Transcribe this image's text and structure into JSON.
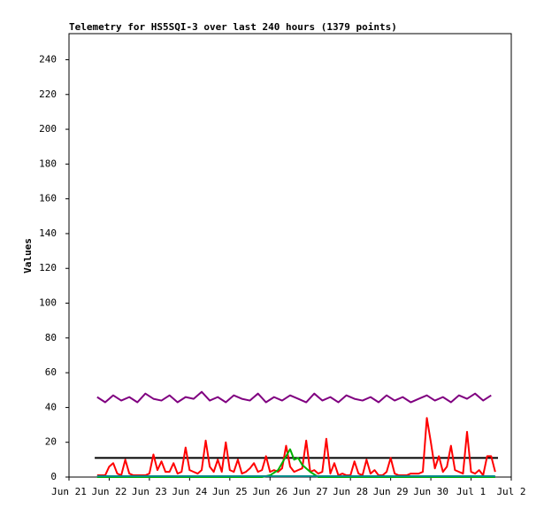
{
  "chart_data": {
    "type": "line",
    "title": "Telemetry for HS5SQI-3 over last 240 hours (1379 points)",
    "y_label": "Values",
    "ylim": [
      0,
      255
    ],
    "yticks": [
      0,
      20,
      40,
      60,
      80,
      100,
      120,
      140,
      160,
      180,
      200,
      220,
      240
    ],
    "xlim": [
      0,
      11
    ],
    "xticks": [
      {
        "value": 0,
        "label": "Jun 21"
      },
      {
        "value": 1,
        "label": "Jun 22"
      },
      {
        "value": 2,
        "label": "Jun 23"
      },
      {
        "value": 3,
        "label": "Jun 24"
      },
      {
        "value": 4,
        "label": "Jun 25"
      },
      {
        "value": 5,
        "label": "Jun 26"
      },
      {
        "value": 6,
        "label": "Jun 27"
      },
      {
        "value": 7,
        "label": "Jun 28"
      },
      {
        "value": 8,
        "label": "Jun 29"
      },
      {
        "value": 9,
        "label": "Jun 30"
      },
      {
        "value": 10,
        "label": "Jul 1"
      },
      {
        "value": 11,
        "label": "Jul 2"
      }
    ],
    "series": [
      {
        "color": "#800080",
        "x": [
          0.7,
          0.9,
          1.1,
          1.3,
          1.5,
          1.7,
          1.9,
          2.1,
          2.3,
          2.5,
          2.7,
          2.9,
          3.1,
          3.3,
          3.5,
          3.7,
          3.9,
          4.1,
          4.3,
          4.5,
          4.7,
          4.9,
          5.1,
          5.3,
          5.5,
          5.7,
          5.9,
          6.1,
          6.3,
          6.5,
          6.7,
          6.9,
          7.1,
          7.3,
          7.5,
          7.7,
          7.9,
          8.1,
          8.3,
          8.5,
          8.7,
          8.9,
          9.1,
          9.3,
          9.5,
          9.7,
          9.9,
          10.1,
          10.3,
          10.5
        ],
        "values": [
          46,
          43,
          47,
          44,
          46,
          43,
          48,
          45,
          44,
          47,
          43,
          46,
          45,
          49,
          44,
          46,
          43,
          47,
          45,
          44,
          48,
          43,
          46,
          44,
          47,
          45,
          43,
          48,
          44,
          46,
          43,
          47,
          45,
          44,
          46,
          43,
          47,
          44,
          46,
          43,
          45,
          47,
          44,
          46,
          43,
          47,
          45,
          48,
          44,
          47
        ]
      },
      {
        "color": "#000000",
        "x": [
          0.64,
          10.67
        ],
        "values": [
          11,
          11
        ]
      },
      {
        "color": "#ff0000",
        "x": [
          0.7,
          0.8,
          0.9,
          1.0,
          1.1,
          1.2,
          1.3,
          1.4,
          1.5,
          1.6,
          1.7,
          1.8,
          1.9,
          2.0,
          2.1,
          2.2,
          2.3,
          2.4,
          2.5,
          2.6,
          2.7,
          2.8,
          2.9,
          3.0,
          3.1,
          3.2,
          3.3,
          3.4,
          3.5,
          3.6,
          3.7,
          3.8,
          3.9,
          4.0,
          4.1,
          4.2,
          4.3,
          4.4,
          4.5,
          4.6,
          4.7,
          4.8,
          4.9,
          5.0,
          5.1,
          5.2,
          5.3,
          5.4,
          5.5,
          5.6,
          5.7,
          5.8,
          5.9,
          6.0,
          6.1,
          6.2,
          6.3,
          6.4,
          6.5,
          6.6,
          6.7,
          6.8,
          6.9,
          7.0,
          7.1,
          7.2,
          7.3,
          7.4,
          7.5,
          7.6,
          7.7,
          7.8,
          7.9,
          8.0,
          8.1,
          8.2,
          8.3,
          8.4,
          8.5,
          8.6,
          8.7,
          8.8,
          8.9,
          9.0,
          9.1,
          9.2,
          9.3,
          9.4,
          9.5,
          9.6,
          9.7,
          9.8,
          9.9,
          10.0,
          10.1,
          10.2,
          10.3,
          10.4,
          10.5,
          10.6
        ],
        "values": [
          1,
          1,
          1,
          6,
          8,
          2,
          1,
          10,
          2,
          1,
          1,
          1,
          1,
          2,
          13,
          4,
          9,
          3,
          3,
          8,
          2,
          3,
          17,
          4,
          3,
          2,
          4,
          21,
          6,
          3,
          10,
          3,
          20,
          4,
          3,
          10,
          2,
          3,
          5,
          8,
          3,
          4,
          12,
          3,
          4,
          3,
          5,
          18,
          6,
          3,
          4,
          5,
          21,
          3,
          4,
          2,
          3,
          22,
          2,
          8,
          1,
          2,
          1,
          1,
          9,
          2,
          1,
          10,
          2,
          4,
          1,
          1,
          3,
          11,
          2,
          1,
          1,
          1,
          2,
          2,
          2,
          3,
          34,
          20,
          5,
          12,
          3,
          6,
          18,
          4,
          3,
          2,
          26,
          3,
          2,
          4,
          1,
          12,
          12,
          3
        ]
      },
      {
        "color": "#00b000",
        "x": [
          0.7,
          4.8,
          5.0,
          5.2,
          5.3,
          5.4,
          5.5,
          5.6,
          5.7,
          5.8,
          6.0,
          6.2,
          10.6
        ],
        "values": [
          0,
          0,
          1,
          4,
          8,
          12,
          16,
          10,
          11,
          7,
          3,
          0,
          0
        ]
      },
      {
        "color": "#008b8b",
        "x": [
          0.7,
          10.6
        ],
        "values": [
          0.5,
          0.5
        ]
      }
    ]
  }
}
